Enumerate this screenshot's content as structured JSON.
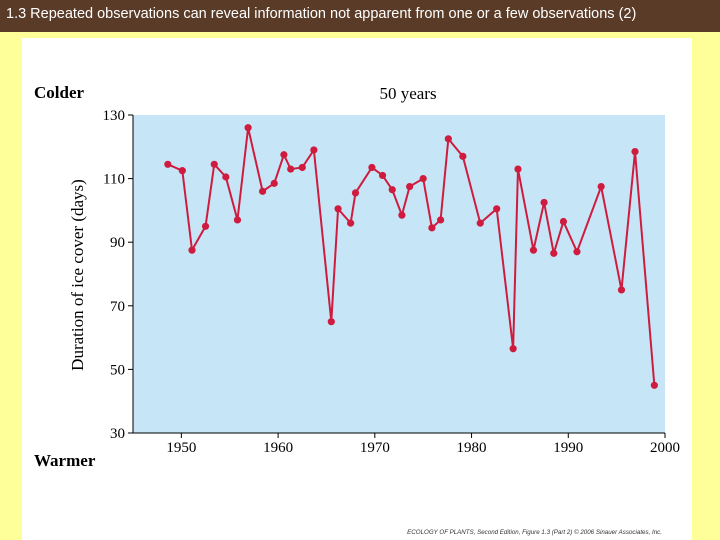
{
  "slide": {
    "title": "1.3 Repeated observations can reveal information not apparent from one or a few observations (2)",
    "credit": "ECOLOGY OF PLANTS, Second Edition, Figure 1.3 (Part 2) © 2006 Sinauer Associates, Inc."
  },
  "chart_data": {
    "type": "line",
    "title": "50 years",
    "ylabel": "Duration of ice cover (days)",
    "xlabel": "",
    "top_label": "Colder",
    "bottom_label": "Warmer",
    "xlim": [
      1945,
      2000
    ],
    "ylim": [
      30,
      130
    ],
    "xticks": [
      1950,
      1960,
      1970,
      1980,
      1990,
      2000
    ],
    "yticks": [
      30,
      50,
      70,
      90,
      110,
      130
    ],
    "plot_bg": "#c6e6f8",
    "line_color": "#cf1c3e",
    "grid": false,
    "points": [
      [
        1948.6,
        114.5
      ],
      [
        1950.1,
        112.5
      ],
      [
        1951.1,
        87.5
      ],
      [
        1952.5,
        95
      ],
      [
        1953.4,
        114.5
      ],
      [
        1954.6,
        110.5
      ],
      [
        1955.8,
        97
      ],
      [
        1956.9,
        126
      ],
      [
        1958.4,
        106
      ],
      [
        1959.6,
        108.5
      ],
      [
        1960.6,
        117.5
      ],
      [
        1961.3,
        113
      ],
      [
        1962.5,
        113.5
      ],
      [
        1963.7,
        119
      ],
      [
        1965.5,
        65
      ],
      [
        1966.2,
        100.5
      ],
      [
        1967.5,
        96
      ],
      [
        1968.0,
        105.5
      ],
      [
        1969.7,
        113.5
      ],
      [
        1970.8,
        111
      ],
      [
        1971.8,
        106.5
      ],
      [
        1972.8,
        98.5
      ],
      [
        1973.6,
        107.5
      ],
      [
        1975.0,
        110
      ],
      [
        1975.9,
        94.5
      ],
      [
        1976.8,
        97
      ],
      [
        1977.6,
        122.5
      ],
      [
        1979.1,
        117
      ],
      [
        1980.9,
        96
      ],
      [
        1982.6,
        100.5
      ],
      [
        1984.3,
        56.5
      ],
      [
        1984.8,
        113
      ],
      [
        1986.4,
        87.5
      ],
      [
        1987.5,
        102.5
      ],
      [
        1988.5,
        86.5
      ],
      [
        1989.5,
        96.5
      ],
      [
        1990.9,
        87
      ],
      [
        1993.4,
        107.5
      ],
      [
        1995.5,
        75
      ],
      [
        1996.9,
        118.5
      ],
      [
        1998.9,
        45
      ]
    ]
  }
}
